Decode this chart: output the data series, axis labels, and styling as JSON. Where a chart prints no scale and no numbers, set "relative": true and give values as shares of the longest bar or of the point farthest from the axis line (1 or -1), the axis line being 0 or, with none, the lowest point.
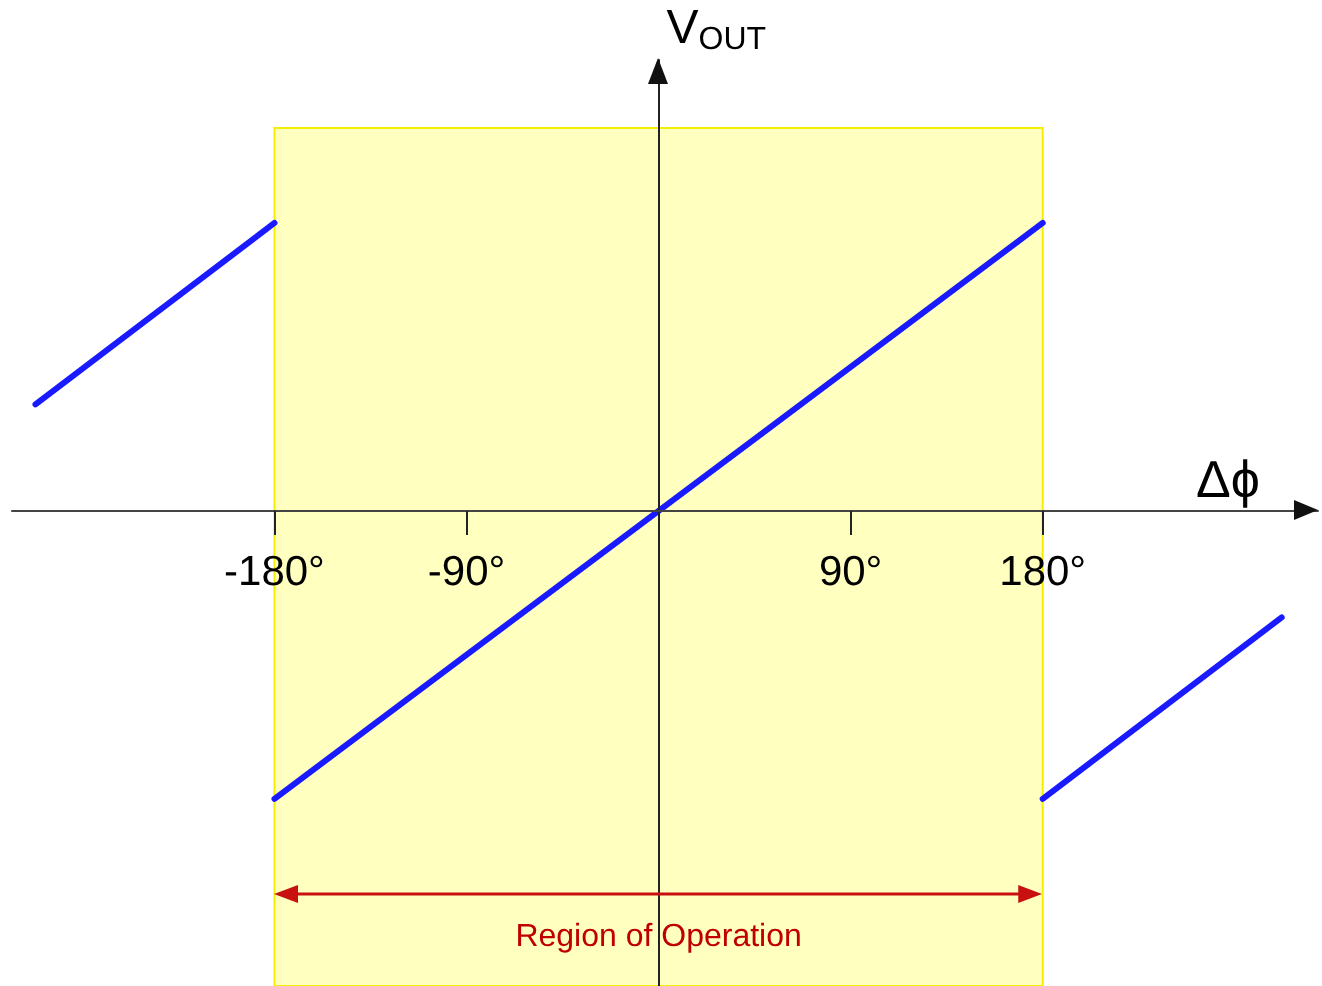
{
  "chart_data": {
    "type": "line",
    "xlabel": "Δϕ",
    "ylabel": "V$_{OUT}$",
    "relative": true,
    "series": [
      {
        "color": "#1a1aff",
        "x": [
          -292,
          -180
        ],
        "values": [
          0.37,
          1
        ]
      },
      {
        "color": "#1a1aff",
        "x": [
          -180,
          180
        ],
        "values": [
          -1,
          1
        ]
      },
      {
        "color": "#1a1aff",
        "x": [
          180,
          292
        ],
        "values": [
          -1,
          -0.37
        ]
      }
    ],
    "xlim": [
      -303,
      309
    ],
    "xticks": [
      {
        "value": -180,
        "label": "-180°"
      },
      {
        "value": -90,
        "label": "-90°"
      },
      {
        "value": 90,
        "label": "90°"
      },
      {
        "value": 180,
        "label": "180°"
      }
    ],
    "bands": [
      {
        "axis": "x",
        "from": -180,
        "to": 180,
        "label": "Region of Operation",
        "color": "#ffffc0"
      }
    ],
    "grid": false,
    "marker": "none",
    "line_style": "solid"
  }
}
